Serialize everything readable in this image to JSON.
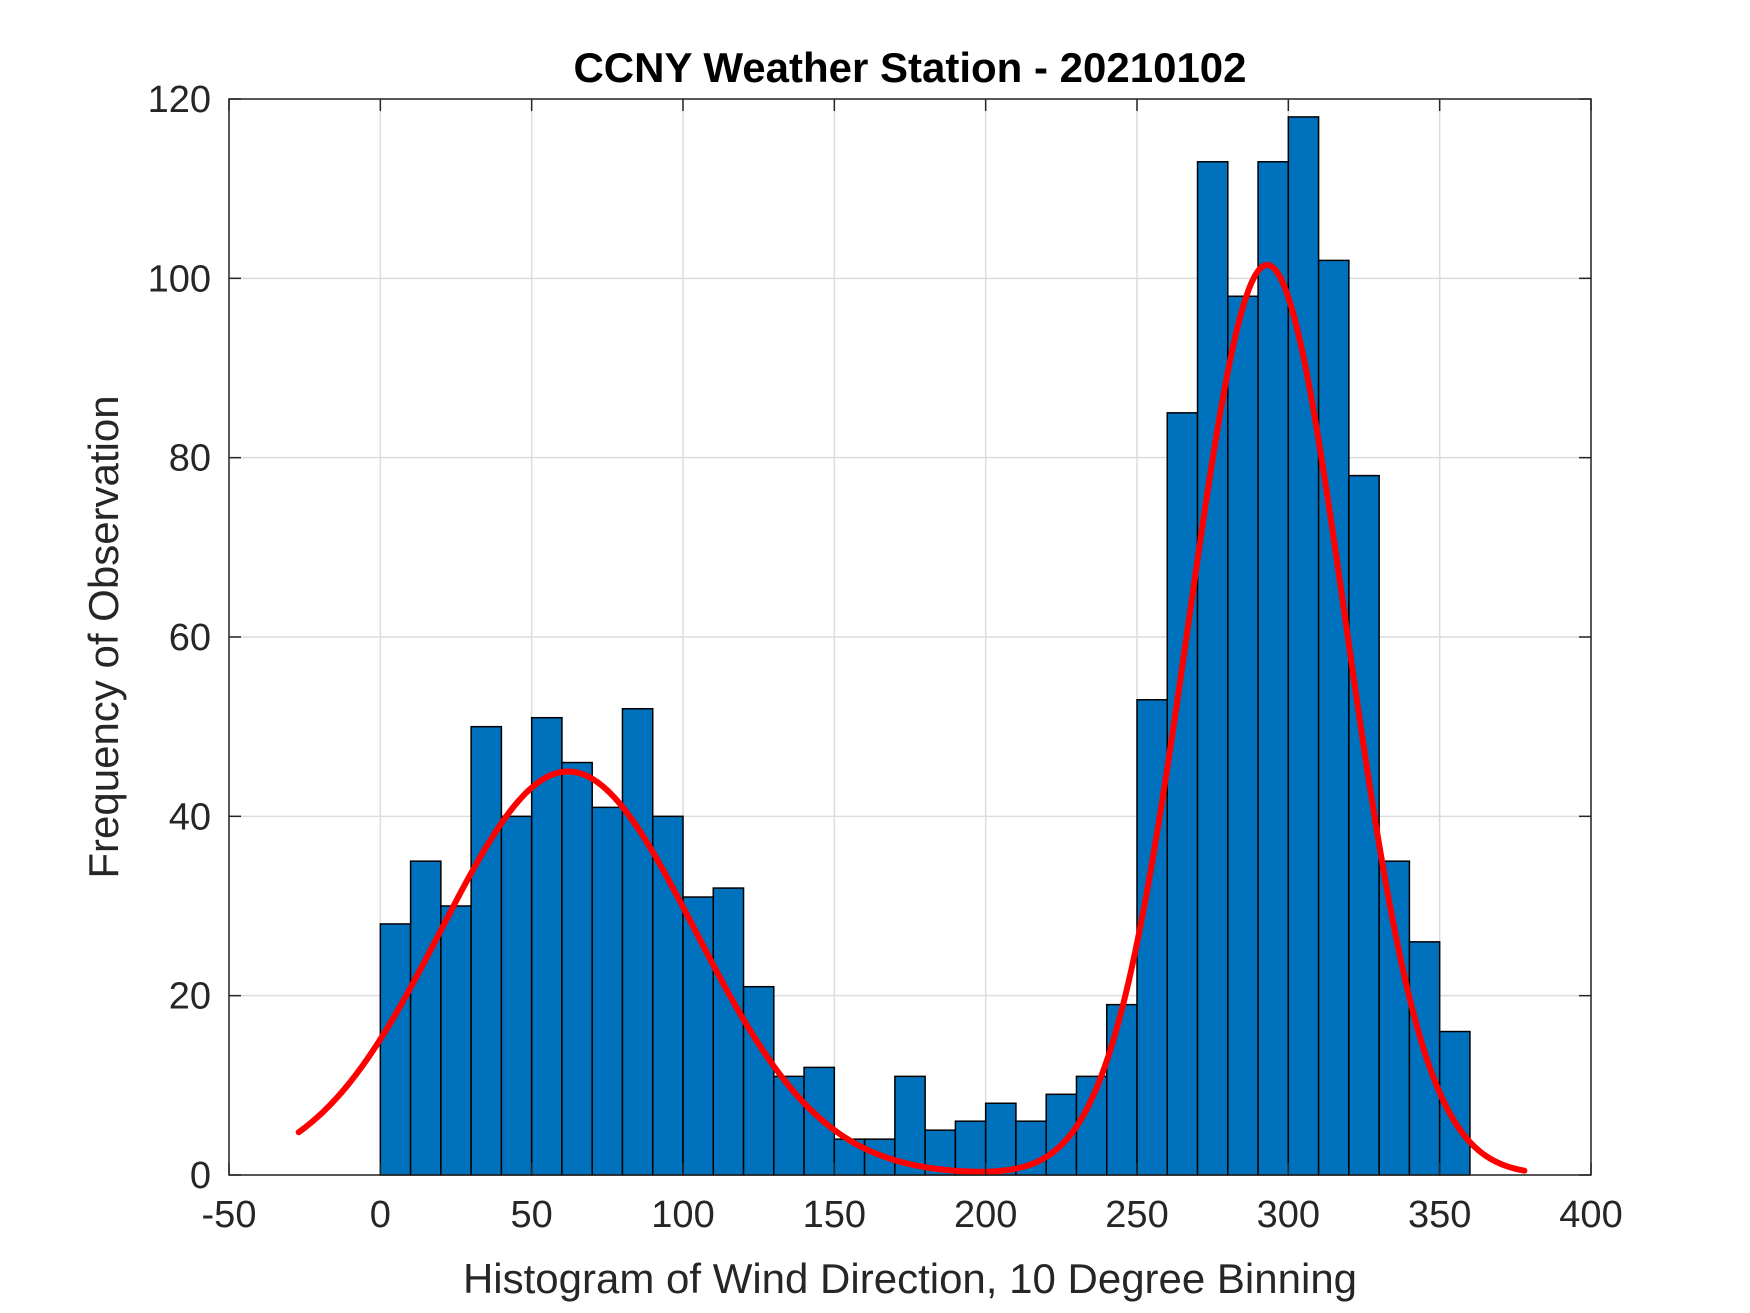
{
  "chart_data": {
    "type": "bar",
    "title": "CCNY Weather Station - 20210102",
    "xlabel": "Histogram of Wind Direction, 10 Degree Binning",
    "ylabel": "Frequency of Observation",
    "xlim": [
      -50,
      400
    ],
    "ylim": [
      0,
      120
    ],
    "xticks": [
      -50,
      0,
      50,
      100,
      150,
      200,
      250,
      300,
      350,
      400
    ],
    "yticks": [
      0,
      20,
      40,
      60,
      80,
      100,
      120
    ],
    "grid": true,
    "bin_width": 10,
    "bin_edges_start": 0,
    "bar_color": "#0072BD",
    "bar_edge_color": "#000000",
    "values": [
      28,
      35,
      30,
      50,
      40,
      51,
      46,
      41,
      52,
      40,
      31,
      32,
      21,
      11,
      12,
      4,
      4,
      11,
      5,
      6,
      8,
      6,
      9,
      11,
      19,
      53,
      85,
      113,
      98,
      113,
      118,
      102,
      78,
      35,
      26,
      16
    ],
    "fit_curve": {
      "type": "line",
      "color": "#FF0000",
      "x_range": [
        -27,
        378
      ],
      "components": [
        {
          "amplitude": 45,
          "mean": 62,
          "sigma": 42
        },
        {
          "amplitude": 101.5,
          "mean": 293,
          "sigma": 26
        }
      ],
      "baseline": 0
    }
  }
}
